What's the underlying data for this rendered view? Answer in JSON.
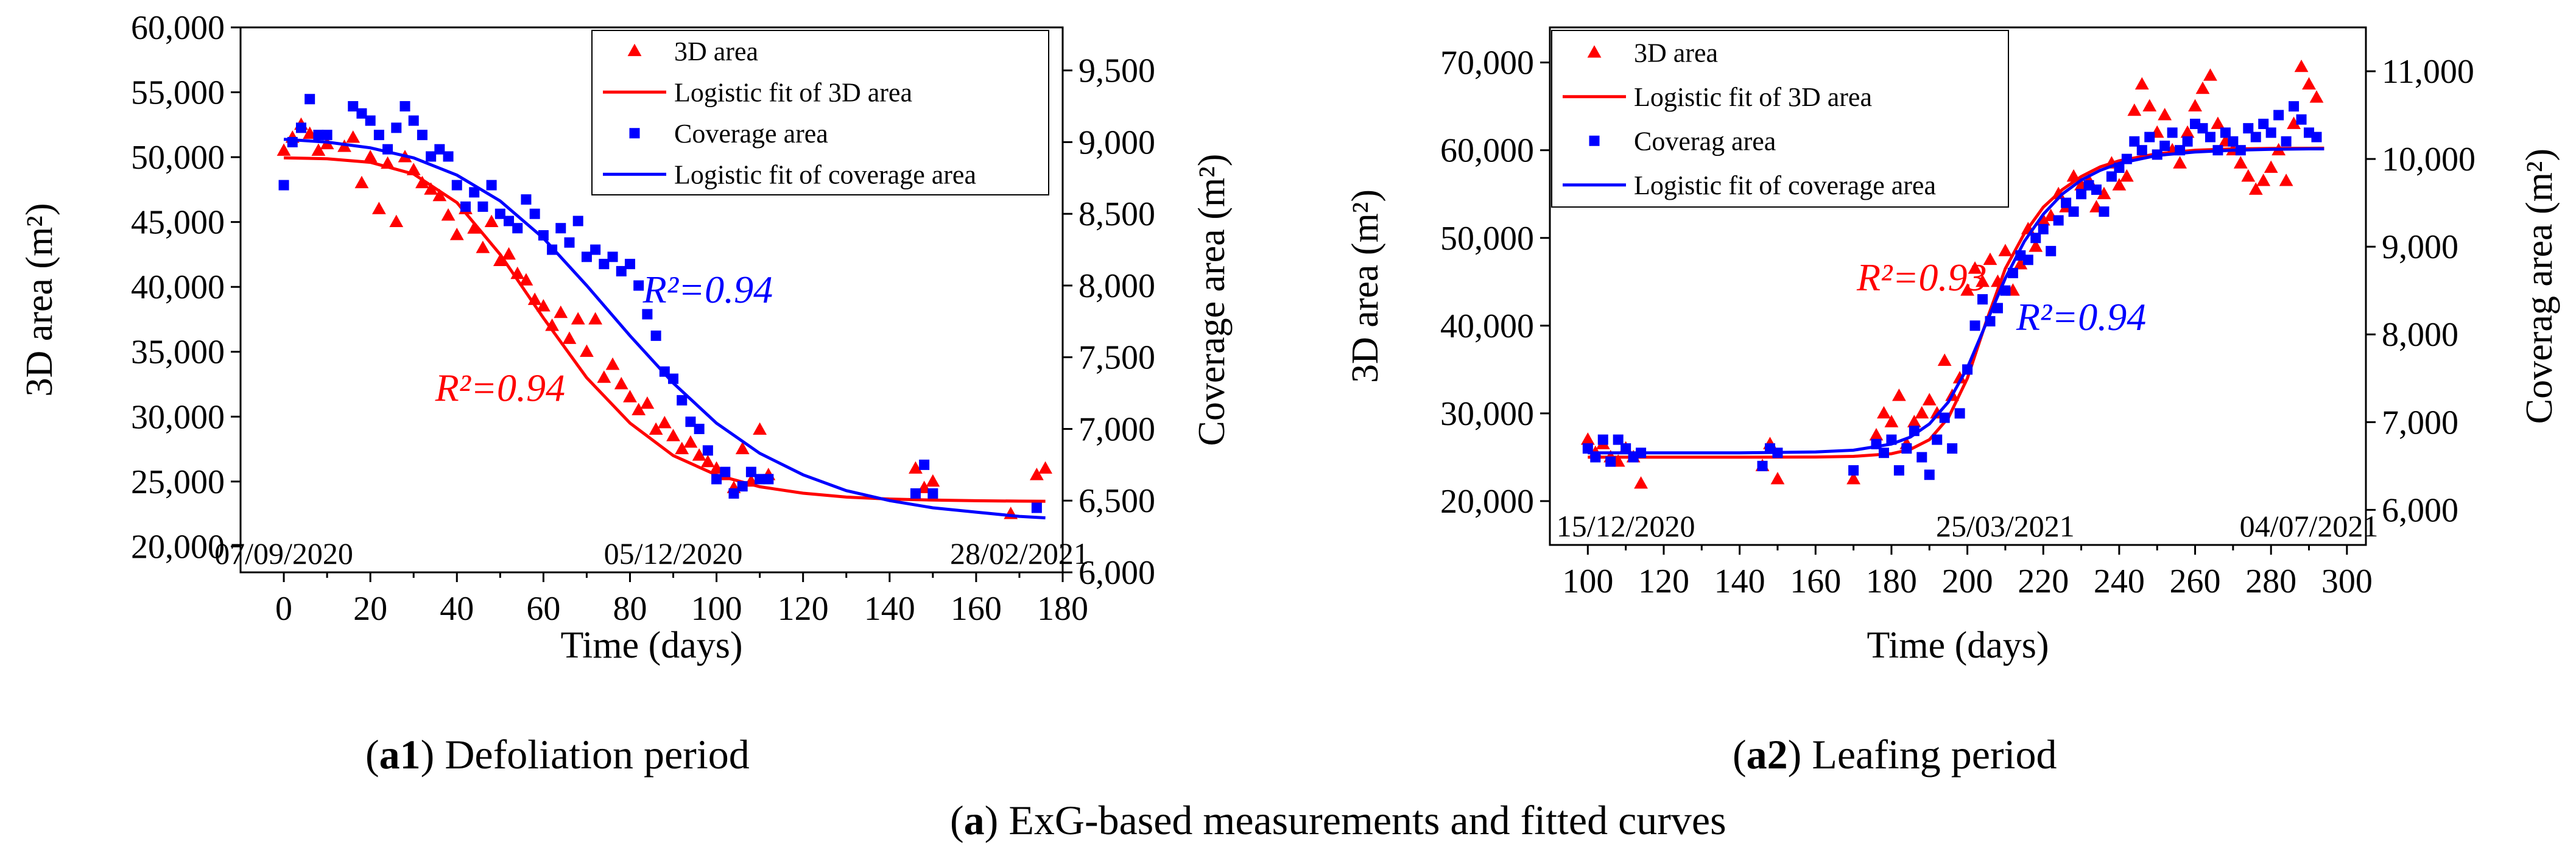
{
  "colors": {
    "red": "#ff0000",
    "blue": "#0000ff",
    "black": "#000000"
  },
  "main_caption": {
    "letter": "a",
    "text": "ExG-based measurements and fitted curves"
  },
  "chart_data": [
    {
      "id": "a1",
      "type": "scatter",
      "caption": {
        "label": "a1",
        "text": "Defoliation period"
      },
      "xlabel": "Time (days)",
      "ylabel_left": "3D area (m²)",
      "ylabel_right": "Coverage area (m²)",
      "xlim": [
        -10,
        180
      ],
      "ylim_left": [
        18000,
        60000
      ],
      "ylim_right": [
        6000,
        9800
      ],
      "x_ticks": [
        0,
        20,
        40,
        60,
        80,
        100,
        120,
        140,
        160,
        180
      ],
      "x_tick_labels": [
        "0",
        "20",
        "40",
        "60",
        "80",
        "100",
        "120",
        "140",
        "160",
        "180"
      ],
      "y_left_ticks": [
        20000,
        25000,
        30000,
        35000,
        40000,
        45000,
        50000,
        55000,
        60000
      ],
      "y_left_tick_labels": [
        "20,000",
        "25,000",
        "30,000",
        "35,000",
        "40,000",
        "45,000",
        "50,000",
        "55,000",
        "60,000"
      ],
      "y_right_ticks": [
        6000,
        6500,
        7000,
        7500,
        8000,
        8500,
        9000,
        9500
      ],
      "y_right_tick_labels": [
        "6,000",
        "6,500",
        "7,000",
        "7,500",
        "8,000",
        "8,500",
        "9,000",
        "9,500"
      ],
      "date_annotations": [
        {
          "x": 0,
          "text": "07/09/2020"
        },
        {
          "x": 90,
          "text": "05/12/2020"
        },
        {
          "x": 170,
          "text": "28/02/2021"
        }
      ],
      "r2_annotations": [
        {
          "text": "R²=0.94",
          "color": "red",
          "x": 50,
          "y": 31200
        },
        {
          "text": "R²=0.94",
          "color": "blue",
          "x": 98,
          "y": 38800
        }
      ],
      "legend_position": "top-right",
      "legend": [
        {
          "label": "3D area",
          "kind": "triangle",
          "color": "red"
        },
        {
          "label": "Logistic fit of 3D area",
          "kind": "line",
          "color": "red"
        },
        {
          "label": "Coverage area",
          "kind": "square",
          "color": "blue"
        },
        {
          "label": "Logistic fit of coverage area",
          "kind": "line",
          "color": "blue"
        }
      ],
      "series": [
        {
          "name": "3D area",
          "axis": "left",
          "kind": "triangle",
          "color": "red",
          "x": [
            0,
            2,
            4,
            6,
            8,
            10,
            14,
            16,
            18,
            20,
            22,
            24,
            26,
            28,
            30,
            32,
            34,
            36,
            38,
            40,
            42,
            44,
            46,
            48,
            50,
            52,
            54,
            56,
            58,
            60,
            62,
            64,
            66,
            68,
            70,
            72,
            74,
            76,
            78,
            80,
            82,
            84,
            86,
            88,
            90,
            92,
            94,
            96,
            98,
            100,
            102,
            104,
            106,
            108,
            110,
            112,
            146,
            148,
            150,
            168,
            174,
            176
          ],
          "y": [
            50500,
            51500,
            52500,
            51800,
            50500,
            51000,
            50800,
            51500,
            48000,
            50000,
            46000,
            49500,
            45000,
            50000,
            49000,
            48000,
            47500,
            47000,
            45500,
            44000,
            46000,
            44500,
            43000,
            45000,
            42000,
            42500,
            41000,
            40500,
            39000,
            38500,
            37000,
            38000,
            36000,
            37500,
            35000,
            37500,
            33000,
            34000,
            32500,
            31500,
            30500,
            31000,
            29000,
            29500,
            28500,
            27500,
            28000,
            27000,
            26500,
            26000,
            25500,
            24500,
            27500,
            25000,
            29000,
            25500,
            26000,
            24500,
            25000,
            22500,
            25500,
            26000
          ]
        },
        {
          "name": "Logistic fit of 3D area",
          "axis": "left",
          "kind": "line",
          "color": "red",
          "x": [
            0,
            10,
            20,
            30,
            40,
            50,
            60,
            70,
            80,
            90,
            100,
            110,
            120,
            130,
            140,
            150,
            160,
            170,
            176
          ],
          "y": [
            49950,
            49880,
            49600,
            48700,
            46500,
            42500,
            37600,
            33000,
            29500,
            27000,
            25500,
            24600,
            24100,
            23800,
            23650,
            23570,
            23520,
            23490,
            23480
          ]
        },
        {
          "name": "Coverage area",
          "axis": "right",
          "kind": "square",
          "color": "blue",
          "x": [
            0,
            2,
            4,
            6,
            8,
            10,
            16,
            18,
            20,
            22,
            24,
            26,
            28,
            30,
            32,
            34,
            36,
            38,
            40,
            42,
            44,
            46,
            48,
            50,
            52,
            54,
            56,
            58,
            60,
            62,
            64,
            66,
            68,
            70,
            72,
            74,
            76,
            78,
            80,
            82,
            84,
            86,
            88,
            90,
            92,
            94,
            96,
            98,
            100,
            102,
            104,
            106,
            108,
            110,
            112,
            146,
            148,
            150,
            174
          ],
          "y": [
            8700,
            9000,
            9100,
            9300,
            9050,
            9050,
            9250,
            9200,
            9150,
            9050,
            8950,
            9100,
            9250,
            9150,
            9050,
            8900,
            8950,
            8900,
            8700,
            8550,
            8650,
            8550,
            8700,
            8500,
            8450,
            8400,
            8600,
            8500,
            8350,
            8250,
            8400,
            8300,
            8450,
            8200,
            8250,
            8150,
            8200,
            8100,
            8150,
            8000,
            7800,
            7650,
            7400,
            7350,
            7200,
            7050,
            7000,
            6850,
            6650,
            6700,
            6550,
            6600,
            6700,
            6650,
            6650,
            6550,
            6750,
            6550,
            6450
          ]
        },
        {
          "name": "Logistic fit of coverage area",
          "axis": "right",
          "kind": "line",
          "color": "blue",
          "x": [
            0,
            10,
            20,
            30,
            40,
            50,
            60,
            70,
            80,
            90,
            100,
            110,
            120,
            130,
            140,
            150,
            160,
            170,
            176
          ],
          "y": [
            9020,
            9000,
            8960,
            8890,
            8770,
            8590,
            8330,
            8000,
            7650,
            7320,
            7040,
            6830,
            6680,
            6570,
            6500,
            6450,
            6420,
            6390,
            6380
          ]
        }
      ]
    },
    {
      "id": "a2",
      "type": "scatter",
      "caption": {
        "label": "a2",
        "text": "Leafing period"
      },
      "xlabel": "Time (days)",
      "ylabel_left": "3D area (m²)",
      "ylabel_right": "Coverag area (m²)",
      "xlim": [
        90,
        305
      ],
      "ylim_left": [
        15000,
        74000
      ],
      "ylim_right": [
        5600,
        11500
      ],
      "x_ticks": [
        100,
        120,
        140,
        160,
        180,
        200,
        220,
        240,
        260,
        280,
        300
      ],
      "x_tick_labels": [
        "100",
        "120",
        "140",
        "160",
        "180",
        "200",
        "220",
        "240",
        "260",
        "280",
        "300"
      ],
      "y_left_ticks": [
        20000,
        30000,
        40000,
        50000,
        60000,
        70000
      ],
      "y_left_tick_labels": [
        "20,000",
        "30,000",
        "40,000",
        "50,000",
        "60,000",
        "70,000"
      ],
      "y_right_ticks": [
        6000,
        7000,
        8000,
        9000,
        10000,
        11000
      ],
      "y_right_tick_labels": [
        "6,000",
        "7,000",
        "8,000",
        "9,000",
        "10,000",
        "11,000"
      ],
      "date_annotations": [
        {
          "x": 110,
          "text": "15/12/2020"
        },
        {
          "x": 210,
          "text": "25/03/2021"
        },
        {
          "x": 290,
          "text": "04/07/2021"
        }
      ],
      "r2_annotations": [
        {
          "text": "R²=0.93",
          "color": "red",
          "x": 188,
          "y": 44000
        },
        {
          "text": "R²=0.94",
          "color": "blue",
          "x": 230,
          "y": 39500
        }
      ],
      "legend_position": "top-left",
      "legend": [
        {
          "label": "3D area",
          "kind": "triangle",
          "color": "red"
        },
        {
          "label": "Logistic fit of 3D area",
          "kind": "line",
          "color": "red"
        },
        {
          "label": "Coverag area",
          "kind": "square",
          "color": "blue"
        },
        {
          "label": "Logistic fit of coverage area",
          "kind": "line",
          "color": "blue"
        }
      ],
      "series": [
        {
          "name": "3D area",
          "axis": "left",
          "kind": "triangle",
          "color": "red",
          "x": [
            100,
            102,
            104,
            106,
            108,
            110,
            112,
            114,
            146,
            148,
            150,
            170,
            176,
            178,
            180,
            182,
            184,
            186,
            188,
            190,
            192,
            194,
            196,
            198,
            200,
            202,
            204,
            206,
            208,
            210,
            212,
            214,
            216,
            218,
            220,
            222,
            224,
            226,
            228,
            230,
            232,
            234,
            236,
            238,
            240,
            242,
            244,
            246,
            248,
            250,
            252,
            254,
            256,
            258,
            260,
            262,
            264,
            266,
            268,
            270,
            272,
            274,
            276,
            278,
            280,
            282,
            284,
            286,
            288,
            290,
            292
          ],
          "y": [
            27000,
            25500,
            26500,
            25000,
            24500,
            26000,
            25000,
            22000,
            24000,
            26500,
            22500,
            22500,
            27500,
            30000,
            29000,
            32000,
            26500,
            29000,
            30000,
            31500,
            30000,
            36000,
            32000,
            34000,
            44000,
            46500,
            45000,
            47500,
            45000,
            48500,
            44000,
            47000,
            51000,
            49000,
            52000,
            52500,
            55000,
            53500,
            57000,
            56000,
            56500,
            53500,
            55000,
            58500,
            56000,
            57000,
            64500,
            67500,
            65000,
            62000,
            64000,
            60000,
            58500,
            62000,
            65000,
            67000,
            68500,
            63000,
            61000,
            60000,
            58500,
            57000,
            55500,
            56500,
            58000,
            60000,
            56500,
            63000,
            69500,
            67500,
            66000
          ]
        },
        {
          "name": "Logistic fit of 3D area",
          "axis": "left",
          "kind": "line",
          "color": "red",
          "x": [
            100,
            120,
            140,
            160,
            170,
            180,
            185,
            190,
            195,
            200,
            205,
            210,
            215,
            220,
            225,
            230,
            235,
            240,
            250,
            260,
            270,
            280,
            290,
            294
          ],
          "y": [
            25000,
            25000,
            25000,
            25020,
            25100,
            25400,
            25900,
            27000,
            29500,
            34000,
            40500,
            46500,
            50500,
            53500,
            55500,
            57000,
            58100,
            58800,
            59600,
            60000,
            60150,
            60200,
            60220,
            60230
          ]
        },
        {
          "name": "Coverag area",
          "axis": "right",
          "kind": "square",
          "color": "blue",
          "x": [
            100,
            102,
            104,
            106,
            108,
            110,
            112,
            114,
            146,
            148,
            150,
            170,
            176,
            178,
            180,
            182,
            184,
            186,
            188,
            190,
            192,
            194,
            196,
            198,
            200,
            202,
            204,
            206,
            208,
            210,
            212,
            214,
            216,
            218,
            220,
            222,
            224,
            226,
            228,
            230,
            232,
            234,
            236,
            238,
            240,
            242,
            244,
            246,
            248,
            250,
            252,
            254,
            256,
            258,
            260,
            262,
            264,
            266,
            268,
            270,
            272,
            274,
            276,
            278,
            280,
            282,
            284,
            286,
            288,
            290,
            292
          ],
          "y": [
            6700,
            6600,
            6800,
            6550,
            6800,
            6700,
            6600,
            6650,
            6500,
            6700,
            6650,
            6450,
            6750,
            6650,
            6800,
            6450,
            6700,
            6900,
            6600,
            6400,
            6800,
            7050,
            6700,
            7100,
            7600,
            8100,
            8400,
            8150,
            8300,
            8500,
            8700,
            8900,
            8850,
            9100,
            9200,
            8950,
            9300,
            9500,
            9400,
            9600,
            9700,
            9650,
            9400,
            9800,
            9900,
            10000,
            10200,
            10100,
            10250,
            10050,
            10150,
            10300,
            10100,
            10200,
            10400,
            10350,
            10250,
            10100,
            10300,
            10200,
            10100,
            10350,
            10250,
            10400,
            10300,
            10500,
            10200,
            10600,
            10450,
            10300,
            10250
          ]
        },
        {
          "name": "Logistic fit of coverage area",
          "axis": "right",
          "kind": "line",
          "color": "blue",
          "x": [
            100,
            120,
            140,
            160,
            170,
            180,
            185,
            190,
            195,
            200,
            205,
            210,
            215,
            220,
            225,
            230,
            235,
            240,
            250,
            260,
            270,
            280,
            290,
            294
          ],
          "y": [
            6650,
            6650,
            6650,
            6660,
            6680,
            6750,
            6830,
            6980,
            7230,
            7620,
            8130,
            8640,
            9060,
            9370,
            9600,
            9760,
            9870,
            9950,
            10040,
            10080,
            10100,
            10110,
            10115,
            10115
          ]
        }
      ]
    }
  ]
}
